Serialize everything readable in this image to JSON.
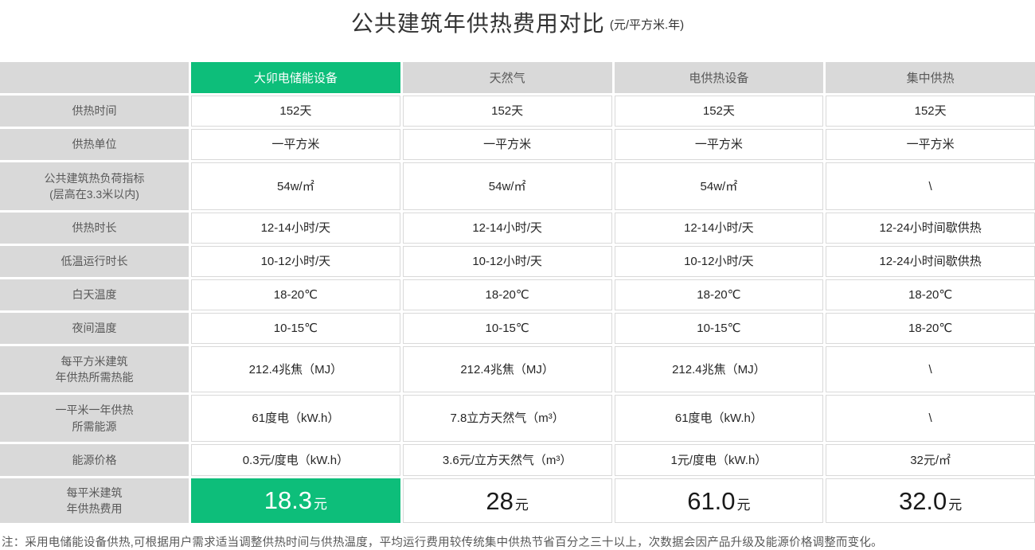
{
  "colors": {
    "accent_green": "#0dbe7a",
    "header_gray": "#d9d9d9",
    "label_text": "#595959",
    "value_text": "#262626"
  },
  "title": {
    "main": "公共建筑年供热费用对比",
    "unit": "(元/平方米.年)"
  },
  "table": {
    "columns": [
      "大卯电储能设备",
      "天然气",
      "电供热设备",
      "集中供热"
    ],
    "rows": [
      {
        "label": "供热时间",
        "values": [
          "152天",
          "152天",
          "152天",
          "152天"
        ]
      },
      {
        "label": "供热单位",
        "values": [
          "一平方米",
          "一平方米",
          "一平方米",
          "一平方米"
        ]
      },
      {
        "label": "公共建筑热负荷指标\n(层高在3.3米以内)",
        "values": [
          "54w/㎡",
          "54w/㎡",
          "54w/㎡",
          "\\"
        ]
      },
      {
        "label": "供热时长",
        "values": [
          "12-14小时/天",
          "12-14小时/天",
          "12-14小时/天",
          "12-24小时间歇供热"
        ]
      },
      {
        "label": "低温运行时长",
        "values": [
          "10-12小时/天",
          "10-12小时/天",
          "10-12小时/天",
          "12-24小时间歇供热"
        ]
      },
      {
        "label": "白天温度",
        "values": [
          "18-20℃",
          "18-20℃",
          "18-20℃",
          "18-20℃"
        ]
      },
      {
        "label": "夜间温度",
        "values": [
          "10-15℃",
          "10-15℃",
          "10-15℃",
          "18-20℃"
        ]
      },
      {
        "label": "每平方米建筑\n年供热所需热能",
        "values": [
          "212.4兆焦（MJ）",
          "212.4兆焦（MJ）",
          "212.4兆焦（MJ）",
          "\\"
        ]
      },
      {
        "label": "一平米一年供热\n所需能源",
        "values": [
          "61度电（kW.h）",
          "7.8立方天然气（m³）",
          "61度电（kW.h）",
          "\\"
        ]
      },
      {
        "label": "能源价格",
        "values": [
          "0.3元/度电（kW.h）",
          "3.6元/立方天然气（m³）",
          "1元/度电（kW.h）",
          "32元/㎡"
        ]
      }
    ],
    "footer_row": {
      "label": "每平米建筑\n年供热费用",
      "unit": "元",
      "values": [
        "18.3",
        "28",
        "61.0",
        "32.0"
      ]
    }
  },
  "footnote": "注：采用电储能设备供热,可根据用户需求适当调整供热时间与供热温度，平均运行费用较传统集中供热节省百分之三十以上，次数据会因产品升级及能源价格调整而变化。"
}
